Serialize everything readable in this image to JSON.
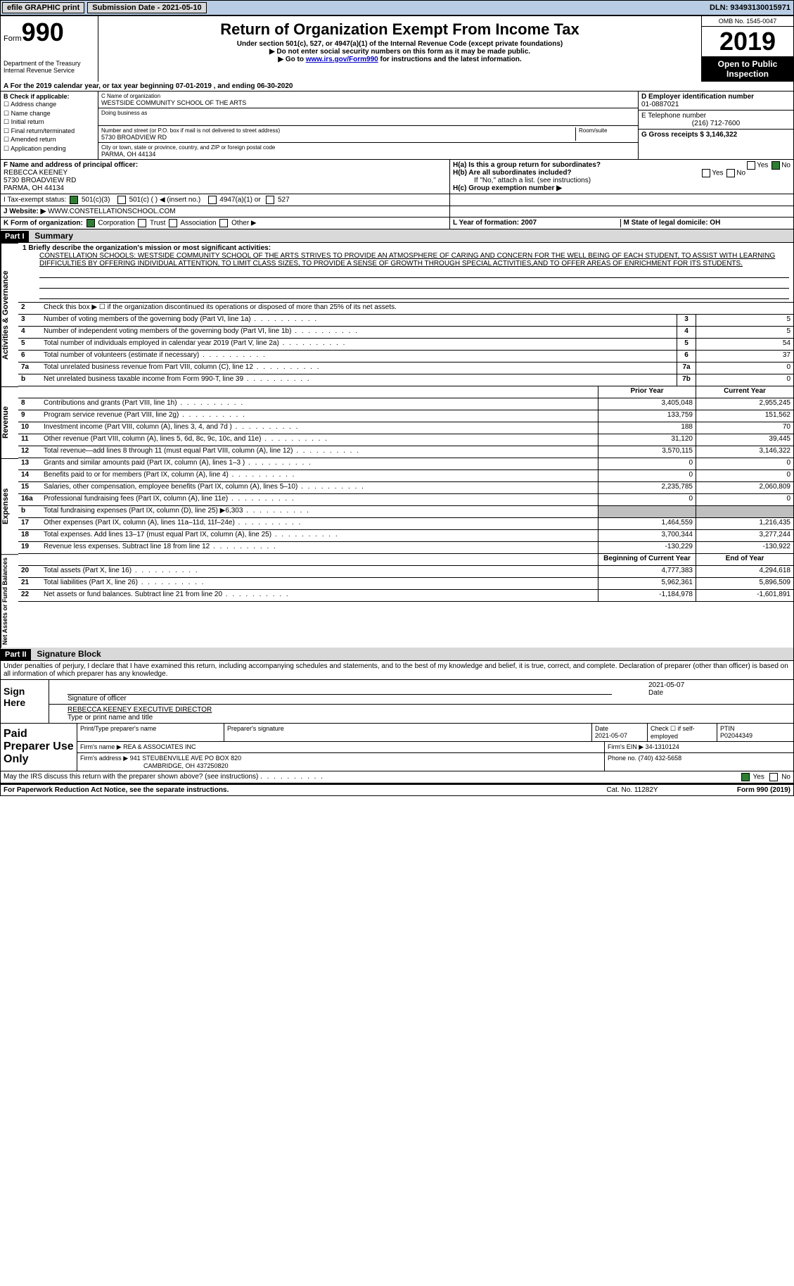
{
  "topbar": {
    "efile": "efile GRAPHIC print",
    "submission_label": "Submission Date - 2021-05-10",
    "dln_label": "DLN: 93493130015971"
  },
  "header": {
    "form_word": "Form",
    "form_num": "990",
    "dept": "Department of the Treasury\nInternal Revenue Service",
    "title": "Return of Organization Exempt From Income Tax",
    "subtitle": "Under section 501(c), 527, or 4947(a)(1) of the Internal Revenue Code (except private foundations)",
    "note1": "▶ Do not enter social security numbers on this form as it may be made public.",
    "note2_pre": "▶ Go to ",
    "note2_link": "www.irs.gov/Form990",
    "note2_post": " for instructions and the latest information.",
    "omb": "OMB No. 1545-0047",
    "year": "2019",
    "open": "Open to Public Inspection"
  },
  "line_a": "A For the 2019 calendar year, or tax year beginning 07-01-2019   , and ending 06-30-2020",
  "box_b": {
    "title": "B Check if applicable:",
    "items": [
      "Address change",
      "Name change",
      "Initial return",
      "Final return/terminated",
      "Amended return",
      "Application pending"
    ]
  },
  "box_c": {
    "label_name": "C Name of organization",
    "org_name": "WESTSIDE COMMUNITY SCHOOL OF THE ARTS",
    "dba_label": "Doing business as",
    "street_label": "Number and street (or P.O. box if mail is not delivered to street address)",
    "room_label": "Room/suite",
    "street": "5730 BROADVIEW RD",
    "city_label": "City or town, state or province, country, and ZIP or foreign postal code",
    "city": "PARMA, OH  44134"
  },
  "box_d": {
    "label": "D Employer identification number",
    "value": "01-0887021",
    "e_label": "E Telephone number",
    "e_value": "(216) 712-7600",
    "g_label": "G Gross receipts $ 3,146,322"
  },
  "box_f": {
    "label": "F  Name and address of principal officer:",
    "name": "REBECCA KEENEY",
    "addr1": "5730 BROADVIEW RD",
    "addr2": "PARMA, OH  44134"
  },
  "box_h": {
    "ha": "H(a)  Is this a group return for subordinates?",
    "hb": "H(b)  Are all subordinates included?",
    "hb_note": "If \"No,\" attach a list. (see instructions)",
    "hc": "H(c)  Group exemption number ▶",
    "yes": "Yes",
    "no": "No"
  },
  "row_i": {
    "label": "I    Tax-exempt status:",
    "o1": "501(c)(3)",
    "o2": "501(c) (  ) ◀ (insert no.)",
    "o3": "4947(a)(1) or",
    "o4": "527"
  },
  "row_j": {
    "label": "J    Website: ▶",
    "value": "WWW.CONSTELLATIONSCHOOL.COM"
  },
  "row_k": {
    "label": "K Form of organization:",
    "o1": "Corporation",
    "o2": "Trust",
    "o3": "Association",
    "o4": "Other ▶",
    "l": "L Year of formation: 2007",
    "m": "M State of legal domicile: OH"
  },
  "part1": {
    "header": "Part I",
    "title": "Summary"
  },
  "mission": {
    "q1": "1   Briefly describe the organization's mission or most significant activities:",
    "text": "CONSTELLATION SCHOOLS: WESTSIDE COMMUNITY SCHOOL OF THE ARTS STRIVES TO PROVIDE AN ATMOSPHERE OF CARING AND CONCERN FOR THE WELL BEING OF EACH STUDENT, TO ASSIST WITH LEARNING DIFFICULTIES BY OFFERING INDIVIDUAL ATTENTION, TO LIMIT CLASS SIZES, TO PROVIDE A SENSE OF GROWTH THROUGH SPECIAL ACTIVITIES,AND TO OFFER AREAS OF ENRICHMENT FOR ITS STUDENTS."
  },
  "gov": {
    "label": "Activities & Governance",
    "l2": "Check this box ▶ ☐ if the organization discontinued its operations or disposed of more than 25% of its net assets.",
    "rows": [
      {
        "n": "3",
        "d": "Number of voting members of the governing body (Part VI, line 1a)",
        "b": "3",
        "v": "5"
      },
      {
        "n": "4",
        "d": "Number of independent voting members of the governing body (Part VI, line 1b)",
        "b": "4",
        "v": "5"
      },
      {
        "n": "5",
        "d": "Total number of individuals employed in calendar year 2019 (Part V, line 2a)",
        "b": "5",
        "v": "54"
      },
      {
        "n": "6",
        "d": "Total number of volunteers (estimate if necessary)",
        "b": "6",
        "v": "37"
      },
      {
        "n": "7a",
        "d": "Total unrelated business revenue from Part VIII, column (C), line 12",
        "b": "7a",
        "v": "0"
      },
      {
        "n": "b",
        "d": "Net unrelated business taxable income from Form 990-T, line 39",
        "b": "7b",
        "v": "0"
      }
    ]
  },
  "rev": {
    "label": "Revenue",
    "hdr_prior": "Prior Year",
    "hdr_curr": "Current Year",
    "rows": [
      {
        "n": "8",
        "d": "Contributions and grants (Part VIII, line 1h)",
        "p": "3,405,048",
        "c": "2,955,245"
      },
      {
        "n": "9",
        "d": "Program service revenue (Part VIII, line 2g)",
        "p": "133,759",
        "c": "151,562"
      },
      {
        "n": "10",
        "d": "Investment income (Part VIII, column (A), lines 3, 4, and 7d )",
        "p": "188",
        "c": "70"
      },
      {
        "n": "11",
        "d": "Other revenue (Part VIII, column (A), lines 5, 6d, 8c, 9c, 10c, and 11e)",
        "p": "31,120",
        "c": "39,445"
      },
      {
        "n": "12",
        "d": "Total revenue—add lines 8 through 11 (must equal Part VIII, column (A), line 12)",
        "p": "3,570,115",
        "c": "3,146,322"
      }
    ]
  },
  "exp": {
    "label": "Expenses",
    "rows": [
      {
        "n": "13",
        "d": "Grants and similar amounts paid (Part IX, column (A), lines 1–3 )",
        "p": "0",
        "c": "0"
      },
      {
        "n": "14",
        "d": "Benefits paid to or for members (Part IX, column (A), line 4)",
        "p": "0",
        "c": "0"
      },
      {
        "n": "15",
        "d": "Salaries, other compensation, employee benefits (Part IX, column (A), lines 5–10)",
        "p": "2,235,785",
        "c": "2,060,809"
      },
      {
        "n": "16a",
        "d": "Professional fundraising fees (Part IX, column (A), line 11e)",
        "p": "0",
        "c": "0"
      },
      {
        "n": "b",
        "d": "Total fundraising expenses (Part IX, column (D), line 25) ▶6,303",
        "p": "",
        "c": "",
        "shade": true
      },
      {
        "n": "17",
        "d": "Other expenses (Part IX, column (A), lines 11a–11d, 11f–24e)",
        "p": "1,464,559",
        "c": "1,216,435"
      },
      {
        "n": "18",
        "d": "Total expenses. Add lines 13–17 (must equal Part IX, column (A), line 25)",
        "p": "3,700,344",
        "c": "3,277,244"
      },
      {
        "n": "19",
        "d": "Revenue less expenses. Subtract line 18 from line 12",
        "p": "-130,229",
        "c": "-130,922"
      }
    ]
  },
  "net": {
    "label": "Net Assets or Fund Balances",
    "hdr_beg": "Beginning of Current Year",
    "hdr_end": "End of Year",
    "rows": [
      {
        "n": "20",
        "d": "Total assets (Part X, line 16)",
        "p": "4,777,383",
        "c": "4,294,618"
      },
      {
        "n": "21",
        "d": "Total liabilities (Part X, line 26)",
        "p": "5,962,361",
        "c": "5,896,509"
      },
      {
        "n": "22",
        "d": "Net assets or fund balances. Subtract line 21 from line 20",
        "p": "-1,184,978",
        "c": "-1,601,891"
      }
    ]
  },
  "part2": {
    "header": "Part II",
    "title": "Signature Block",
    "decl": "Under penalties of perjury, I declare that I have examined this return, including accompanying schedules and statements, and to the best of my knowledge and belief, it is true, correct, and complete. Declaration of preparer (other than officer) is based on all information of which preparer has any knowledge."
  },
  "sign": {
    "left": "Sign Here",
    "date": "2021-05-07",
    "sig_label": "Signature of officer",
    "date_label": "Date",
    "name": "REBECCA KEENEY EXECUTIVE DIRECTOR",
    "name_label": "Type or print name and title"
  },
  "paid": {
    "left": "Paid Preparer Use Only",
    "h1": "Print/Type preparer's name",
    "h2": "Preparer's signature",
    "h3": "Date",
    "h3v": "2021-05-07",
    "h4": "Check ☐ if self-employed",
    "h5": "PTIN",
    "h5v": "P02044349",
    "firm_label": "Firm's name    ▶",
    "firm": "REA & ASSOCIATES INC",
    "ein_label": "Firm's EIN ▶",
    "ein": "34-1310124",
    "addr_label": "Firm's address ▶",
    "addr": "941 STEUBENVILLE AVE PO BOX 820",
    "addr2": "CAMBRIDGE, OH  437250820",
    "phone_label": "Phone no.",
    "phone": "(740) 432-5658"
  },
  "footer": {
    "q": "May the IRS discuss this return with the preparer shown above? (see instructions)",
    "yes": "Yes",
    "no": "No",
    "paperwork": "For Paperwork Reduction Act Notice, see the separate instructions.",
    "cat": "Cat. No. 11282Y",
    "form": "Form 990 (2019)"
  }
}
